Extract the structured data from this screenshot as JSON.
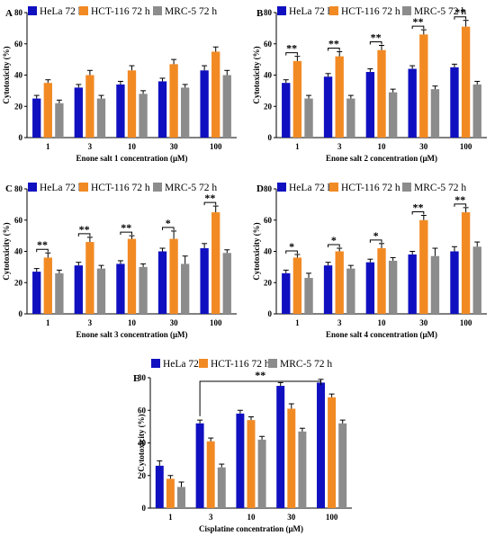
{
  "legend": {
    "series": [
      {
        "name": "HeLa 72 h",
        "color": "#1010c0"
      },
      {
        "name": "HCT-116 72 h",
        "color": "#f28a24"
      },
      {
        "name": "MRC-5 72 h",
        "color": "#8c8c8c"
      }
    ]
  },
  "chart_data": [
    {
      "panel": "A",
      "type": "bar",
      "xlabel": "Enone salt 1 concentration (μM)",
      "ylabel": "Cytotoxicity (%)",
      "ylim": [
        0,
        80
      ],
      "yticks": [
        0,
        20,
        40,
        60,
        80
      ],
      "categories": [
        "1",
        "3",
        "10",
        "30",
        "100"
      ],
      "series": [
        {
          "name": "HeLa 72 h",
          "values": [
            25,
            32,
            34,
            36,
            43
          ],
          "errors": [
            2,
            2,
            2,
            2,
            3
          ]
        },
        {
          "name": "HCT-116 72 h",
          "values": [
            35,
            40,
            43,
            47,
            55
          ],
          "errors": [
            2,
            3,
            3,
            3,
            3
          ]
        },
        {
          "name": "MRC-5 72 h",
          "values": [
            22,
            25,
            28,
            32,
            40
          ],
          "errors": [
            2,
            2,
            2,
            2,
            3
          ]
        }
      ],
      "significance": [],
      "legend": "top"
    },
    {
      "panel": "B",
      "type": "bar",
      "xlabel": "Enone salt 2 concentration (μM)",
      "ylabel": "Cytotoxicity (%)",
      "ylim": [
        0,
        80
      ],
      "yticks": [
        0,
        20,
        40,
        60,
        80
      ],
      "categories": [
        "1",
        "3",
        "10",
        "30",
        "100"
      ],
      "series": [
        {
          "name": "HeLa 72 h",
          "values": [
            35,
            39,
            42,
            44,
            45
          ],
          "errors": [
            2,
            2,
            2,
            2,
            2
          ]
        },
        {
          "name": "HCT-116 72 h",
          "values": [
            49,
            52,
            56,
            66,
            71
          ],
          "errors": [
            3,
            3,
            3,
            3,
            4
          ]
        },
        {
          "name": "MRC-5 72 h",
          "values": [
            25,
            25,
            29,
            31,
            34
          ],
          "errors": [
            2,
            2,
            2,
            2,
            2
          ]
        }
      ],
      "significance": [
        {
          "category": "1",
          "label": "**"
        },
        {
          "category": "3",
          "label": "**"
        },
        {
          "category": "10",
          "label": "**"
        },
        {
          "category": "30",
          "label": "**"
        },
        {
          "category": "100",
          "label": "**"
        }
      ],
      "legend": "top"
    },
    {
      "panel": "C",
      "type": "bar",
      "xlabel": "Enone salt 3 concentration (μM)",
      "ylabel": "Cytotoxicity (%)",
      "ylim": [
        0,
        80
      ],
      "yticks": [
        0,
        20,
        40,
        60,
        80
      ],
      "categories": [
        "1",
        "3",
        "10",
        "30",
        "100"
      ],
      "series": [
        {
          "name": "HeLa 72 h",
          "values": [
            27,
            31,
            32,
            40,
            42
          ],
          "errors": [
            2,
            2,
            2,
            2,
            3
          ]
        },
        {
          "name": "HCT-116 72 h",
          "values": [
            36,
            46,
            48,
            48,
            65
          ],
          "errors": [
            3,
            3,
            2,
            5,
            4
          ]
        },
        {
          "name": "MRC-5 72 h",
          "values": [
            26,
            29,
            30,
            32,
            39
          ],
          "errors": [
            2,
            2,
            2,
            5,
            2
          ]
        }
      ],
      "significance": [
        {
          "category": "1",
          "label": "**"
        },
        {
          "category": "3",
          "label": "**"
        },
        {
          "category": "10",
          "label": "**"
        },
        {
          "category": "30",
          "label": "*"
        },
        {
          "category": "100",
          "label": "**"
        }
      ],
      "legend": "top"
    },
    {
      "panel": "D",
      "type": "bar",
      "xlabel": "Enone salt 4 concentration (μM)",
      "ylabel": "Cytotoxicity (%)",
      "ylim": [
        0,
        80
      ],
      "yticks": [
        0,
        20,
        40,
        60,
        80
      ],
      "categories": [
        "1",
        "3",
        "10",
        "30",
        "100"
      ],
      "series": [
        {
          "name": "HeLa 72 h",
          "values": [
            26,
            31,
            33,
            38,
            40
          ],
          "errors": [
            2,
            2,
            2,
            2,
            3
          ]
        },
        {
          "name": "HCT-116 72 h",
          "values": [
            36,
            40,
            42,
            60,
            65
          ],
          "errors": [
            2,
            2,
            3,
            3,
            3
          ]
        },
        {
          "name": "MRC-5 72 h",
          "values": [
            23,
            29,
            34,
            37,
            43
          ],
          "errors": [
            3,
            2,
            2,
            5,
            3
          ]
        }
      ],
      "significance": [
        {
          "category": "1",
          "label": "*"
        },
        {
          "category": "3",
          "label": "*"
        },
        {
          "category": "10",
          "label": "*"
        },
        {
          "category": "30",
          "label": "**"
        },
        {
          "category": "100",
          "label": "**"
        }
      ],
      "legend": "top"
    },
    {
      "panel": "E",
      "type": "bar",
      "xlabel": "Cisplatine concentration (μM)",
      "ylabel": "Cytotoxicity (%)",
      "ylim": [
        0,
        80
      ],
      "yticks": [
        0,
        20,
        40,
        60,
        80
      ],
      "categories": [
        "1",
        "3",
        "10",
        "30",
        "100"
      ],
      "series": [
        {
          "name": "HeLa 72 h",
          "values": [
            26,
            52,
            58,
            75,
            77
          ],
          "errors": [
            3,
            2,
            2,
            2,
            2
          ]
        },
        {
          "name": "HCT-116 72 h",
          "values": [
            18,
            41,
            54,
            61,
            68
          ],
          "errors": [
            2,
            2,
            2,
            3,
            2
          ]
        },
        {
          "name": "MRC-5 72 h",
          "values": [
            13,
            25,
            42,
            47,
            52
          ],
          "errors": [
            3,
            2,
            2,
            2,
            2
          ]
        }
      ],
      "significance_span": {
        "from": "3",
        "to": "100",
        "label": "**"
      },
      "significance": [],
      "legend": "top"
    }
  ]
}
